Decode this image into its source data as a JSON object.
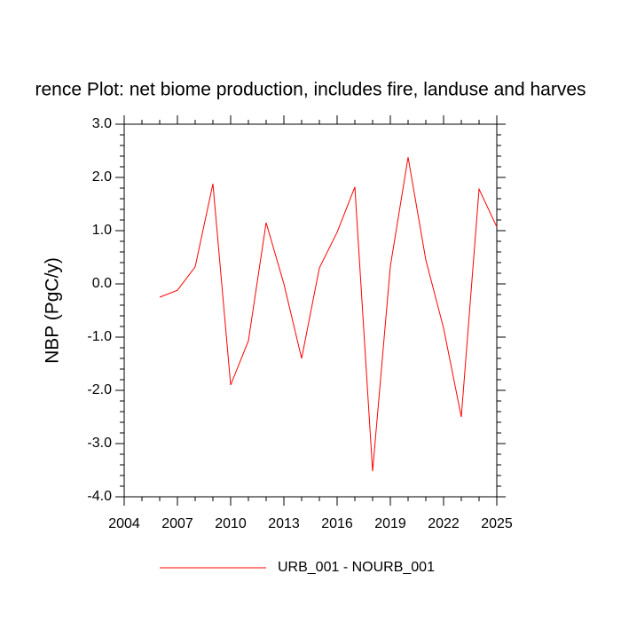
{
  "chart_data": {
    "type": "line",
    "title": "rence Plot: net biome production, includes fire, landuse and harves",
    "y_label": "NBP  (PgC/y)",
    "x": [
      2006,
      2007,
      2008,
      2009,
      2010,
      2011,
      2012,
      2013,
      2014,
      2015,
      2016,
      2017,
      2018,
      2019,
      2020,
      2021,
      2022,
      2023,
      2024,
      2025
    ],
    "series": [
      {
        "name": "URB_001 - NOURB_001",
        "color": "#ff0000",
        "values": [
          -0.25,
          -0.12,
          0.32,
          1.88,
          -1.9,
          -1.07,
          1.15,
          0.0,
          -1.4,
          0.3,
          0.97,
          1.82,
          -3.52,
          0.33,
          2.38,
          0.45,
          -0.83,
          -2.5,
          1.78,
          1.07
        ]
      }
    ],
    "xlim": [
      2004,
      2025
    ],
    "xticks": [
      2004,
      2007,
      2010,
      2013,
      2016,
      2019,
      2022,
      2025
    ],
    "ylim": [
      -4,
      3
    ],
    "yticks": [
      {
        "value": -4,
        "label": "-4.0"
      },
      {
        "value": -3,
        "label": "-3.0"
      },
      {
        "value": -2,
        "label": "-2.0"
      },
      {
        "value": -1,
        "label": "-1.0"
      },
      {
        "value": 0,
        "label": "0.0"
      },
      {
        "value": 1,
        "label": "1.0"
      },
      {
        "value": 2,
        "label": "2.0"
      },
      {
        "value": 3,
        "label": "3.0"
      }
    ],
    "grid": false
  }
}
